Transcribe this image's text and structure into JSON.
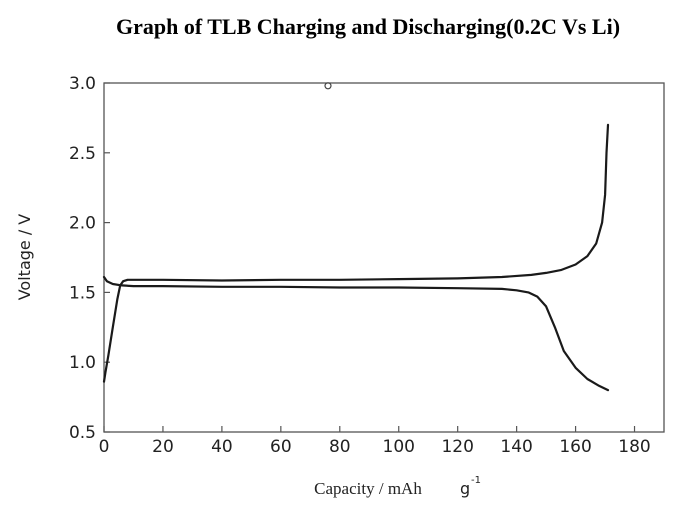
{
  "chart_data": {
    "type": "line",
    "title": "Graph of TLB Charging and Discharging(0.2C Vs Li)",
    "xlabel": "Capacity / mAh",
    "xlabel_unit": "g",
    "xlabel_unit_exponent": "-1",
    "ylabel": "Voltage / V",
    "xlim": [
      0,
      190
    ],
    "ylim": [
      0.5,
      3.0
    ],
    "x_ticks": [
      "0",
      "20",
      "40",
      "60",
      "80",
      "100",
      "120",
      "140",
      "160",
      "180"
    ],
    "y_ticks": [
      "0.5",
      "1.0",
      "1.5",
      "2.0",
      "2.5",
      "3.0"
    ],
    "grid": false,
    "legend": "none",
    "line_color": "#1a1a1a",
    "series": [
      {
        "x": [
          0,
          0.5,
          1.5,
          3,
          4.5,
          5.5,
          6.5,
          8,
          20,
          40,
          60,
          80,
          100,
          120,
          135,
          145,
          150,
          155,
          160,
          164,
          167,
          169,
          170,
          170.5,
          171
        ],
        "y": [
          0.86,
          0.93,
          1.05,
          1.25,
          1.45,
          1.55,
          1.58,
          1.59,
          1.59,
          1.585,
          1.59,
          1.59,
          1.595,
          1.6,
          1.61,
          1.625,
          1.64,
          1.66,
          1.7,
          1.76,
          1.85,
          2.0,
          2.2,
          2.5,
          2.7
        ]
      },
      {
        "x": [
          0,
          1,
          3,
          6,
          10,
          20,
          40,
          60,
          80,
          100,
          120,
          135,
          140,
          144,
          147,
          150,
          153,
          156,
          160,
          164,
          168,
          171
        ],
        "y": [
          1.61,
          1.58,
          1.56,
          1.55,
          1.545,
          1.545,
          1.54,
          1.54,
          1.535,
          1.535,
          1.53,
          1.525,
          1.515,
          1.5,
          1.47,
          1.4,
          1.25,
          1.08,
          0.96,
          0.88,
          0.83,
          0.8
        ]
      }
    ],
    "annotations": [
      {
        "text": "o",
        "x": 76,
        "y": 2.98
      }
    ]
  }
}
